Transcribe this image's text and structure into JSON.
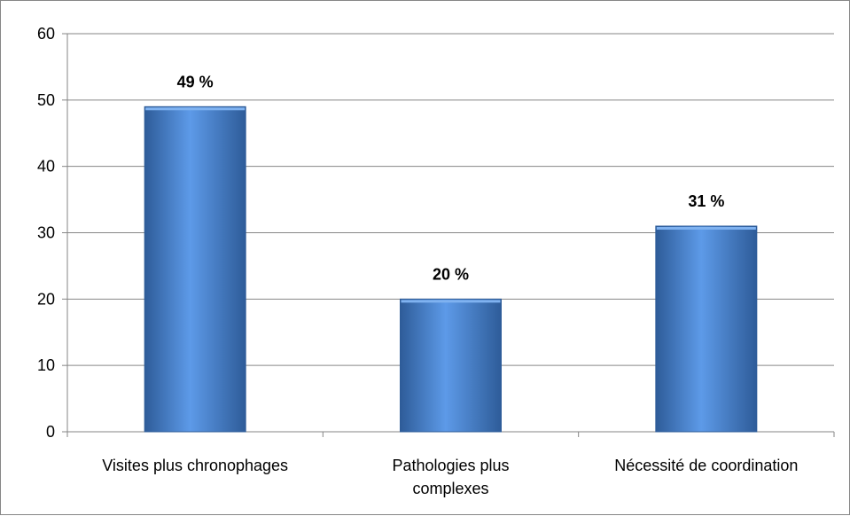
{
  "chart_data": {
    "type": "bar",
    "categories": [
      [
        "Visites plus chronophages"
      ],
      [
        "Pathologies plus",
        "complexes"
      ],
      [
        "Nécessité de coordination"
      ]
    ],
    "values": [
      49,
      20,
      31
    ],
    "data_labels": [
      "49 %",
      "20 %",
      "31 %"
    ],
    "ylim": [
      0,
      60
    ],
    "yticks": [
      0,
      10,
      20,
      30,
      40,
      50,
      60
    ],
    "grid": true,
    "legend": "none",
    "bar_color": "#4a7ebb",
    "bar_color_light": "#5d9ae8",
    "bar_color_dark": "#2e5c99"
  }
}
